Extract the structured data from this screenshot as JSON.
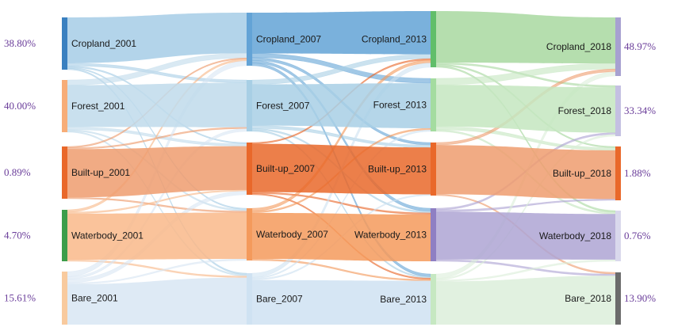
{
  "chart_data": {
    "type": "sankey",
    "columns": [
      {
        "year": "2001",
        "nodes": [
          {
            "id": "c01",
            "label": "Cropland_2001",
            "share": 38.8,
            "pct_text": "38.80%",
            "color": "#3a80c0",
            "band": "#a6cde6"
          },
          {
            "id": "f01",
            "label": "Forest_2001",
            "share": 40.0,
            "pct_text": "40.00%",
            "color": "#f7ad78",
            "band": "#bfdbeb"
          },
          {
            "id": "b01",
            "label": "Built-up_2001",
            "share": 0.89,
            "pct_text": "0.89%",
            "color": "#e9682a",
            "band": "#ee9c6e"
          },
          {
            "id": "w01",
            "label": "Waterbody_2001",
            "share": 4.7,
            "pct_text": "4.70%",
            "color": "#3c9d4a",
            "band": "#f9b98a"
          },
          {
            "id": "r01",
            "label": "Bare_2001",
            "share": 15.61,
            "pct_text": "15.61%",
            "color": "#f8ca9e",
            "band": "#d8e6f3"
          }
        ]
      },
      {
        "year": "2007",
        "nodes": [
          {
            "id": "c07",
            "label": "Cropland_2007",
            "color": "#63a3d6"
          },
          {
            "id": "f07",
            "label": "Forest_2007",
            "color": "#a8cfe5"
          },
          {
            "id": "b07",
            "label": "Built-up_2007",
            "color": "#e9682a"
          },
          {
            "id": "w07",
            "label": "Waterbody_2007",
            "color": "#f49a5c"
          },
          {
            "id": "r07",
            "label": "Bare_2007",
            "color": "#cfe2f2"
          }
        ]
      },
      {
        "year": "2013",
        "nodes": [
          {
            "id": "c13",
            "label": "Cropland_2013",
            "color": "#61be6a",
            "band": "#a8d8a0"
          },
          {
            "id": "f13",
            "label": "Forest_2013",
            "color": "#a4dca0",
            "band": "#c4e6c0"
          },
          {
            "id": "b13",
            "label": "Built-up_2013",
            "color": "#e9682a",
            "band": "#ee9c6e"
          },
          {
            "id": "w13",
            "label": "Waterbody_2013",
            "color": "#8f7fc3",
            "band": "#aea4d4"
          },
          {
            "id": "r13",
            "label": "Bare_2013",
            "color": "#c6e8c2",
            "band": "#dcefda"
          }
        ]
      },
      {
        "year": "2018",
        "nodes": [
          {
            "id": "c18",
            "label": "Cropland_2018",
            "share": 48.97,
            "pct_text": "48.97%",
            "color": "#a7a1d1"
          },
          {
            "id": "f18",
            "label": "Forest_2018",
            "share": 33.34,
            "pct_text": "33.34%",
            "color": "#c4c0e2"
          },
          {
            "id": "b18",
            "label": "Built-up_2018",
            "share": 1.88,
            "pct_text": "1.88%",
            "color": "#e9682a"
          },
          {
            "id": "w18",
            "label": "Waterbody_2018",
            "share": 0.76,
            "pct_text": "0.76%",
            "color": "#d9d8ec"
          },
          {
            "id": "r18",
            "label": "Bare_2018",
            "share": 13.9,
            "pct_text": "13.90%",
            "color": "#6b6b6b",
            "band": "#9a9a9a"
          }
        ]
      }
    ],
    "flows": [
      {
        "from": "c01",
        "to": "c07",
        "value": 34
      },
      {
        "from": "c01",
        "to": "f07",
        "value": 2
      },
      {
        "from": "c01",
        "to": "b07",
        "value": 1
      },
      {
        "from": "c01",
        "to": "w07",
        "value": 0.8
      },
      {
        "from": "c01",
        "to": "r07",
        "value": 1
      },
      {
        "from": "f01",
        "to": "f07",
        "value": 32
      },
      {
        "from": "f01",
        "to": "c07",
        "value": 4
      },
      {
        "from": "f01",
        "to": "b07",
        "value": 2
      },
      {
        "from": "f01",
        "to": "w07",
        "value": 1
      },
      {
        "from": "f01",
        "to": "r07",
        "value": 1
      },
      {
        "from": "b01",
        "to": "b07",
        "value": 36
      },
      {
        "from": "b01",
        "to": "c07",
        "value": 1
      },
      {
        "from": "b01",
        "to": "f07",
        "value": 1
      },
      {
        "from": "b01",
        "to": "w07",
        "value": 1
      },
      {
        "from": "w01",
        "to": "w07",
        "value": 30
      },
      {
        "from": "w01",
        "to": "c07",
        "value": 1.5
      },
      {
        "from": "w01",
        "to": "b07",
        "value": 1
      },
      {
        "from": "w01",
        "to": "r07",
        "value": 1
      },
      {
        "from": "r01",
        "to": "r07",
        "value": 32
      },
      {
        "from": "r01",
        "to": "c07",
        "value": 4
      },
      {
        "from": "r01",
        "to": "f07",
        "value": 2
      },
      {
        "from": "r01",
        "to": "b07",
        "value": 3
      },
      {
        "from": "r01",
        "to": "w07",
        "value": 1
      },
      {
        "from": "c07",
        "to": "c13",
        "value": 30
      },
      {
        "from": "c07",
        "to": "f13",
        "value": 3
      },
      {
        "from": "c07",
        "to": "b13",
        "value": 2
      },
      {
        "from": "c07",
        "to": "w13",
        "value": 2
      },
      {
        "from": "c07",
        "to": "r13",
        "value": 2
      },
      {
        "from": "f07",
        "to": "f13",
        "value": 28
      },
      {
        "from": "f07",
        "to": "c13",
        "value": 3
      },
      {
        "from": "f07",
        "to": "b13",
        "value": 2
      },
      {
        "from": "f07",
        "to": "w13",
        "value": 1
      },
      {
        "from": "f07",
        "to": "r13",
        "value": 1
      },
      {
        "from": "b07",
        "to": "b13",
        "value": 38
      },
      {
        "from": "b07",
        "to": "c13",
        "value": 1
      },
      {
        "from": "b07",
        "to": "w13",
        "value": 1
      },
      {
        "from": "b07",
        "to": "r13",
        "value": 1
      },
      {
        "from": "w07",
        "to": "w13",
        "value": 30
      },
      {
        "from": "w07",
        "to": "c13",
        "value": 2
      },
      {
        "from": "w07",
        "to": "f13",
        "value": 1
      },
      {
        "from": "w07",
        "to": "r13",
        "value": 1
      },
      {
        "from": "r07",
        "to": "r13",
        "value": 32
      },
      {
        "from": "r07",
        "to": "c13",
        "value": 3
      },
      {
        "from": "r07",
        "to": "f13",
        "value": 1
      },
      {
        "from": "r07",
        "to": "b13",
        "value": 1
      },
      {
        "from": "c13",
        "to": "c18",
        "value": 33
      },
      {
        "from": "c13",
        "to": "f18",
        "value": 1
      },
      {
        "from": "c13",
        "to": "b18",
        "value": 1
      },
      {
        "from": "c13",
        "to": "w18",
        "value": 1
      },
      {
        "from": "f13",
        "to": "f18",
        "value": 26
      },
      {
        "from": "f13",
        "to": "c18",
        "value": 4
      },
      {
        "from": "f13",
        "to": "b18",
        "value": 2
      },
      {
        "from": "f13",
        "to": "w18",
        "value": 1
      },
      {
        "from": "b13",
        "to": "b18",
        "value": 38
      },
      {
        "from": "b13",
        "to": "c18",
        "value": 2
      },
      {
        "from": "b13",
        "to": "r18",
        "value": 1
      },
      {
        "from": "w13",
        "to": "w18",
        "value": 27
      },
      {
        "from": "w13",
        "to": "f18",
        "value": 1
      },
      {
        "from": "w13",
        "to": "b18",
        "value": 1
      },
      {
        "from": "w13",
        "to": "r18",
        "value": 1
      },
      {
        "from": "r13",
        "to": "r18",
        "value": 29
      },
      {
        "from": "r13",
        "to": "c18",
        "value": 3
      },
      {
        "from": "r13",
        "to": "f18",
        "value": 1
      },
      {
        "from": "r13",
        "to": "w18",
        "value": 1
      }
    ]
  }
}
